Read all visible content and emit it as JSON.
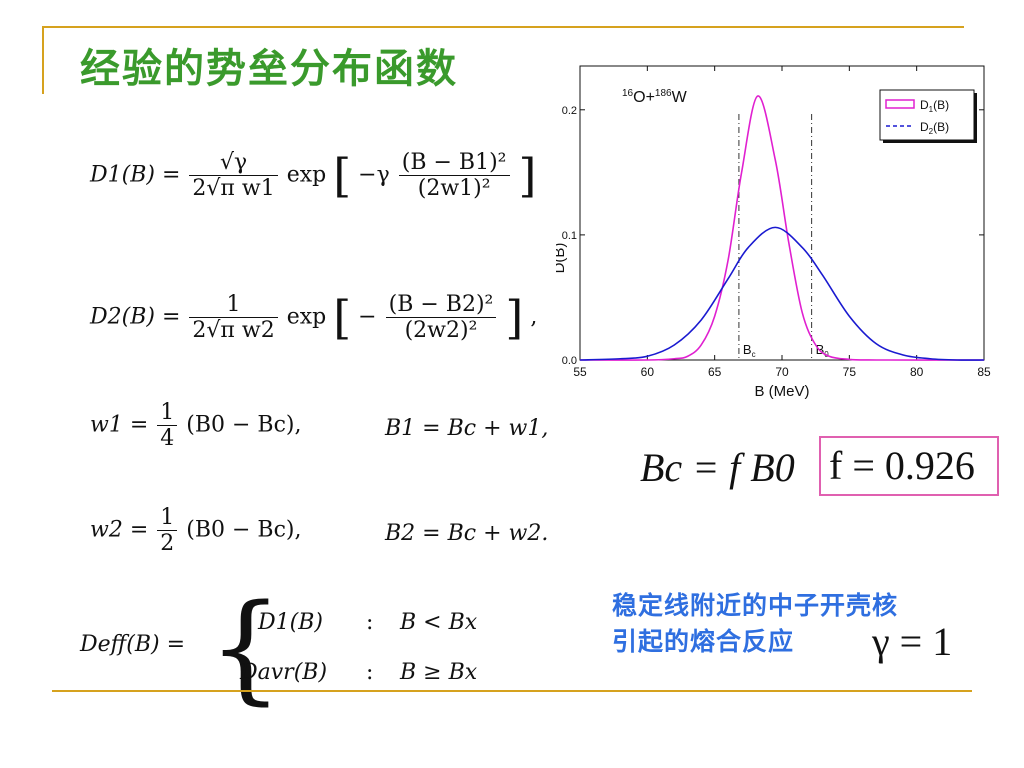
{
  "slide": {
    "title": "经验的势垒分布函数"
  },
  "equations": {
    "d1_lhs": "D1(B) =",
    "d1_num": "√γ",
    "d1_den": "2√π w1",
    "d1_exp": "exp",
    "d1_inner_prefix": "−γ",
    "d1_inner_num": "(B − B1)²",
    "d1_inner_den": "(2w1)²",
    "d2_lhs": "D2(B) =",
    "d2_num": "1",
    "d2_den": "2√π w2",
    "d2_exp": "exp",
    "d2_inner_prefix": "−",
    "d2_inner_num": "(B − B2)²",
    "d2_inner_den": "(2w2)²",
    "d2_tail": ",",
    "w1": "w1 =",
    "w1_num": "1",
    "w1_den": "4",
    "w1_rhs": "(B0 − Bc),",
    "b1": "B1 = Bc + w1,",
    "w2": "w2 =",
    "w2_num": "1",
    "w2_den": "2",
    "w2_rhs": "(B0 − Bc),",
    "b2": "B2 = Bc + w2.",
    "deff_lhs": "Deff(B) =",
    "deff_case1_f": "D1(B)",
    "deff_case1_sep": ":",
    "deff_case1_cond": "B < Bx",
    "deff_case2_f": "Davr(B)",
    "deff_case2_sep": ":",
    "deff_case2_cond": "B ≥ Bx"
  },
  "side": {
    "bc_formula": "Bc = f B0",
    "f_value": "f = 0.926",
    "note_line1": "稳定线附近的中子开壳核",
    "note_line2": "引起的熔合反应",
    "gamma_value": "γ = 1"
  },
  "chart_data": {
    "type": "line",
    "reaction_label": "16O+186W",
    "xlabel": "B (MeV)",
    "ylabel": "D(B)",
    "xlim": [
      55,
      85
    ],
    "ylim": [
      0.0,
      0.235
    ],
    "xticks": [
      "55",
      "60",
      "65",
      "70",
      "75",
      "80",
      "85"
    ],
    "yticks": [
      "0.0",
      "0.1",
      "0.2"
    ],
    "xtick_values": [
      55,
      60,
      65,
      70,
      75,
      80,
      85
    ],
    "ytick_values": [
      0.0,
      0.1,
      0.2
    ],
    "series": [
      {
        "name": "D1(B)",
        "color": "#e020d0",
        "style": "solid",
        "x": [
          55,
          60,
          62,
          63,
          64,
          65,
          66,
          67,
          68.2,
          69.5,
          70.5,
          71.5,
          72.5,
          73.5,
          75,
          77,
          85
        ],
        "y": [
          0.0,
          0.0,
          0.001,
          0.003,
          0.012,
          0.035,
          0.08,
          0.15,
          0.211,
          0.16,
          0.094,
          0.038,
          0.012,
          0.003,
          0.0005,
          0.0,
          0.0
        ]
      },
      {
        "name": "D2(B)",
        "color": "#1a1ad0",
        "style": "solid",
        "x": [
          55,
          58,
          60,
          62,
          64,
          66,
          67.5,
          69.5,
          71.5,
          73,
          75,
          77,
          79,
          81,
          83,
          85
        ],
        "y": [
          0.0,
          0.001,
          0.003,
          0.012,
          0.032,
          0.065,
          0.09,
          0.106,
          0.09,
          0.068,
          0.035,
          0.013,
          0.004,
          0.001,
          0.0,
          0.0
        ]
      }
    ],
    "vlines": [
      {
        "x": 66.8,
        "label": "Bc"
      },
      {
        "x": 72.2,
        "label": "B0"
      }
    ],
    "legend": [
      "D1(B)",
      "D2(B)"
    ],
    "legend_position": "top-right",
    "grid": false
  }
}
